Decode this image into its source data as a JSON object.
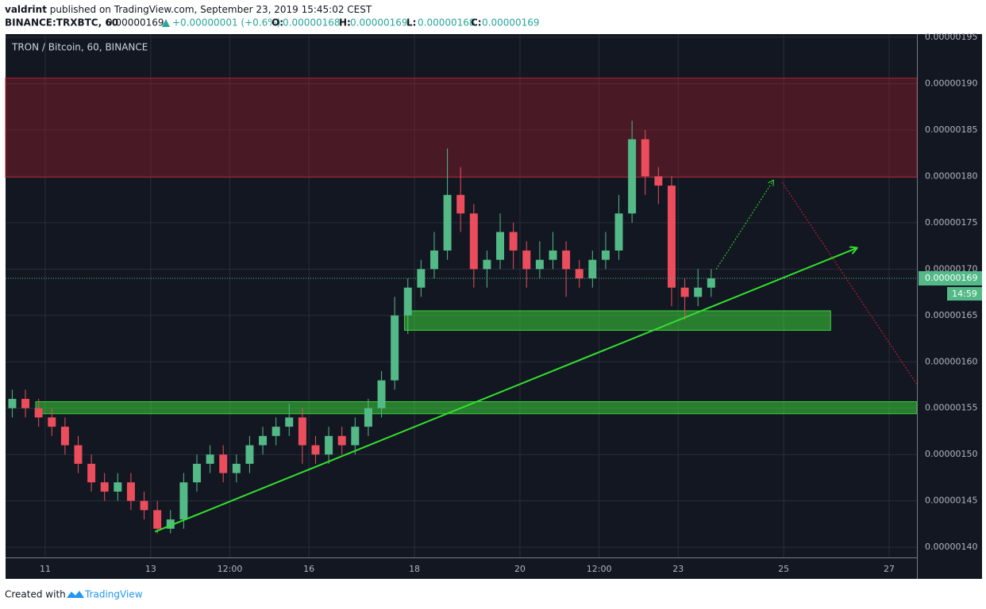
{
  "chart_data": {
    "type": "candlestick",
    "header": {
      "author": "valdrint",
      "published": "published on TradingView.com, September 23, 2019 15:45:02 CEST",
      "symbol": "BINANCE:TRXBTC, 60",
      "price": "0.00000169",
      "change": "+0.00000001 (+0.6%)",
      "ohlc": [
        {
          "label": "O:",
          "value": "0.00000168"
        },
        {
          "label": "H:",
          "value": "0.00000169"
        },
        {
          "label": "L:",
          "value": "0.00000168"
        },
        {
          "label": "C:",
          "value": "0.00000169"
        }
      ]
    },
    "title": "TRON / Bitcoin, 60, BINANCE",
    "footer": {
      "text": "Created with",
      "brand": "TradingView"
    },
    "up_color": "#53b987",
    "down_color": "#eb4d5c",
    "x": [
      10.375,
      10.625,
      10.875,
      11.125,
      11.375,
      11.625,
      11.875,
      12.125,
      12.375,
      12.625,
      12.875,
      13.125,
      13.375,
      13.625,
      13.875,
      14.125,
      14.375,
      14.625,
      14.875,
      15.125,
      15.375,
      15.625,
      15.875,
      16.125,
      16.375,
      16.625,
      16.875,
      17.125,
      17.375,
      17.625,
      17.875,
      18.125,
      18.375,
      18.625,
      18.875,
      19.125,
      19.375,
      19.625,
      19.875,
      20.125,
      20.375,
      20.625,
      20.875,
      21.125,
      21.375,
      21.625,
      21.875,
      22.125,
      22.375,
      22.625,
      22.875,
      23.125,
      23.375,
      23.625
    ],
    "open": [
      1.55e-06,
      1.56e-06,
      1.55e-06,
      1.54e-06,
      1.53e-06,
      1.51e-06,
      1.49e-06,
      1.47e-06,
      1.46e-06,
      1.47e-06,
      1.45e-06,
      1.44e-06,
      1.42e-06,
      1.43e-06,
      1.47e-06,
      1.49e-06,
      1.5e-06,
      1.48e-06,
      1.49e-06,
      1.51e-06,
      1.52e-06,
      1.53e-06,
      1.54e-06,
      1.51e-06,
      1.5e-06,
      1.52e-06,
      1.51e-06,
      1.53e-06,
      1.55e-06,
      1.58e-06,
      1.65e-06,
      1.68e-06,
      1.7e-06,
      1.72e-06,
      1.78e-06,
      1.76e-06,
      1.7e-06,
      1.71e-06,
      1.74e-06,
      1.72e-06,
      1.7e-06,
      1.71e-06,
      1.72e-06,
      1.7e-06,
      1.69e-06,
      1.71e-06,
      1.72e-06,
      1.76e-06,
      1.84e-06,
      1.8e-06,
      1.79e-06,
      1.68e-06,
      1.67e-06,
      1.68e-06
    ],
    "high": [
      1.57e-06,
      1.57e-06,
      1.56e-06,
      1.55e-06,
      1.54e-06,
      1.52e-06,
      1.5e-06,
      1.48e-06,
      1.48e-06,
      1.48e-06,
      1.46e-06,
      1.45e-06,
      1.44e-06,
      1.48e-06,
      1.5e-06,
      1.51e-06,
      1.51e-06,
      1.5e-06,
      1.52e-06,
      1.53e-06,
      1.54e-06,
      1.555e-06,
      1.55e-06,
      1.52e-06,
      1.53e-06,
      1.53e-06,
      1.54e-06,
      1.56e-06,
      1.59e-06,
      1.67e-06,
      1.69e-06,
      1.71e-06,
      1.74e-06,
      1.83e-06,
      1.81e-06,
      1.77e-06,
      1.72e-06,
      1.76e-06,
      1.75e-06,
      1.73e-06,
      1.73e-06,
      1.74e-06,
      1.73e-06,
      1.71e-06,
      1.72e-06,
      1.74e-06,
      1.78e-06,
      1.86e-06,
      1.85e-06,
      1.81e-06,
      1.8e-06,
      1.69e-06,
      1.7e-06,
      1.7e-06
    ],
    "low": [
      1.54e-06,
      1.54e-06,
      1.53e-06,
      1.52e-06,
      1.5e-06,
      1.48e-06,
      1.46e-06,
      1.45e-06,
      1.45e-06,
      1.44e-06,
      1.43e-06,
      1.415e-06,
      1.415e-06,
      1.42e-06,
      1.46e-06,
      1.48e-06,
      1.47e-06,
      1.47e-06,
      1.48e-06,
      1.5e-06,
      1.51e-06,
      1.52e-06,
      1.49e-06,
      1.49e-06,
      1.49e-06,
      1.5e-06,
      1.5e-06,
      1.52e-06,
      1.54e-06,
      1.57e-06,
      1.63e-06,
      1.67e-06,
      1.69e-06,
      1.71e-06,
      1.74e-06,
      1.68e-06,
      1.68e-06,
      1.7e-06,
      1.7e-06,
      1.68e-06,
      1.69e-06,
      1.7e-06,
      1.67e-06,
      1.68e-06,
      1.68e-06,
      1.7e-06,
      1.71e-06,
      1.75e-06,
      1.78e-06,
      1.77e-06,
      1.66e-06,
      1.645e-06,
      1.66e-06,
      1.67e-06
    ],
    "close": [
      1.56e-06,
      1.55e-06,
      1.54e-06,
      1.53e-06,
      1.51e-06,
      1.49e-06,
      1.47e-06,
      1.46e-06,
      1.47e-06,
      1.45e-06,
      1.44e-06,
      1.42e-06,
      1.43e-06,
      1.47e-06,
      1.49e-06,
      1.5e-06,
      1.48e-06,
      1.49e-06,
      1.51e-06,
      1.52e-06,
      1.53e-06,
      1.54e-06,
      1.51e-06,
      1.5e-06,
      1.52e-06,
      1.51e-06,
      1.53e-06,
      1.55e-06,
      1.58e-06,
      1.65e-06,
      1.68e-06,
      1.7e-06,
      1.72e-06,
      1.78e-06,
      1.76e-06,
      1.7e-06,
      1.71e-06,
      1.74e-06,
      1.72e-06,
      1.7e-06,
      1.71e-06,
      1.72e-06,
      1.7e-06,
      1.69e-06,
      1.71e-06,
      1.72e-06,
      1.76e-06,
      1.84e-06,
      1.8e-06,
      1.79e-06,
      1.68e-06,
      1.67e-06,
      1.68e-06,
      1.69e-06
    ],
    "xlim": [
      10.248,
      27.526
    ],
    "xticks": [
      11,
      13,
      {
        "value": 14.5,
        "label": "12:00"
      },
      16,
      18,
      20,
      {
        "value": 21.5,
        "label": "12:00"
      },
      23,
      25,
      27
    ],
    "ylim": [
      1.389e-06,
      1.9534e-06
    ],
    "yticks": [
      {
        "value": 1.4e-06,
        "label": "0.00000140"
      },
      {
        "value": 1.45e-06,
        "label": "0.00000145"
      },
      {
        "value": 1.5e-06,
        "label": "0.00000150"
      },
      {
        "value": 1.55e-06,
        "label": "0.00000155"
      },
      {
        "value": 1.6e-06,
        "label": "0.00000160"
      },
      {
        "value": 1.65e-06,
        "label": "0.00000165"
      },
      {
        "value": 1.7e-06,
        "label": "0.00000170"
      },
      {
        "value": 1.75e-06,
        "label": "0.00000175"
      },
      {
        "value": 1.8e-06,
        "label": "0.00000180"
      },
      {
        "value": 1.85e-06,
        "label": "0.00000185"
      },
      {
        "value": 1.9e-06,
        "label": "0.00000190"
      },
      {
        "value": 1.95e-06,
        "label": "0.00000195"
      }
    ],
    "grid": true,
    "last_price": {
      "value": 1.69e-06,
      "label": "0.00000169",
      "countdown": "14:59"
    },
    "zones": [
      {
        "y": [
          1.799e-06,
          1.906e-06
        ],
        "color": "#a3202e"
      },
      {
        "x": [
          17.81,
          25.89
        ],
        "y": [
          1.634e-06,
          1.655e-06
        ],
        "color": "#3bd13b"
      },
      {
        "x": [
          10.82,
          27.526
        ],
        "y": [
          1.544e-06,
          1.557e-06
        ],
        "color": "#3bd13b"
      }
    ],
    "lines": [
      {
        "x": [
          13.08,
          26.38
        ],
        "y": [
          1.4167e-06,
          1.7226e-06
        ],
        "color": "#33e02d",
        "dashed": false
      },
      {
        "x": [
          23.72,
          24.8
        ],
        "y": [
          1.6996e-06,
          1.7953e-06
        ],
        "color": "#33e02d",
        "dashed": true
      },
      {
        "x": [
          24.97,
          27.526
        ],
        "y": [
          1.7936e-06,
          1.5756e-06
        ],
        "color": "#d0202e",
        "dashed": true
      }
    ]
  }
}
